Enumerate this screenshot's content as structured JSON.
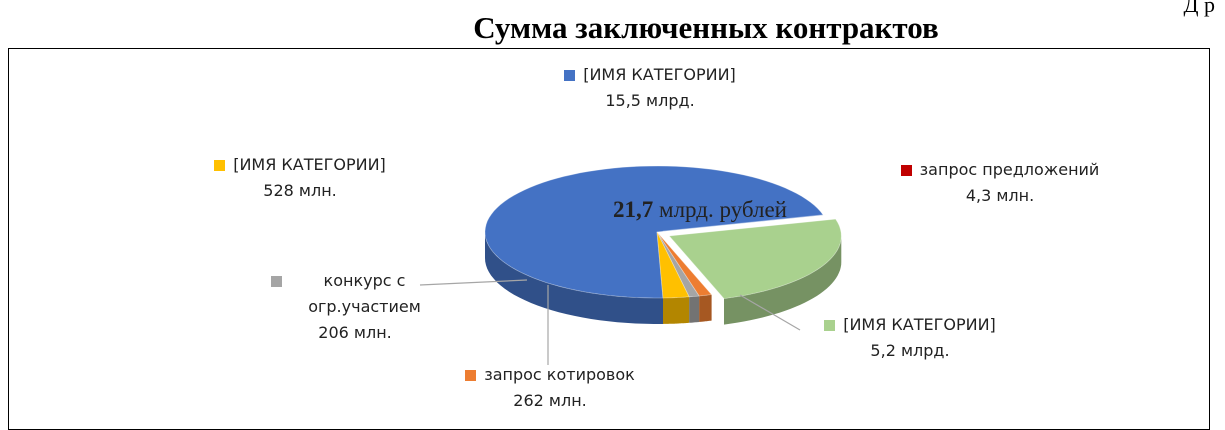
{
  "corner_text": "Д р",
  "chart_data": {
    "type": "pie",
    "title": "Сумма заключенных контрактов",
    "categories": [
      "[ИМЯ КАТЕГОРИИ]",
      "запрос предложений",
      "[ИМЯ КАТЕГОРИИ]",
      "запрос котировок",
      "конкурс с огр.участием",
      "[ИМЯ КАТЕГОРИИ]"
    ],
    "values": [
      15500,
      4.3,
      5200,
      262,
      206,
      528
    ],
    "value_labels": [
      "15,5 млрд.",
      "4,3 млн.",
      "5,2 млрд.",
      "262 млн.",
      "206 млн.",
      "528 млн."
    ],
    "colors": [
      "#4472c4",
      "#c00000",
      "#a9d18e",
      "#ed7d31",
      "#a5a5a5",
      "#ffc000"
    ],
    "center_value": "21,7",
    "center_unit": "млрд. рублей"
  }
}
